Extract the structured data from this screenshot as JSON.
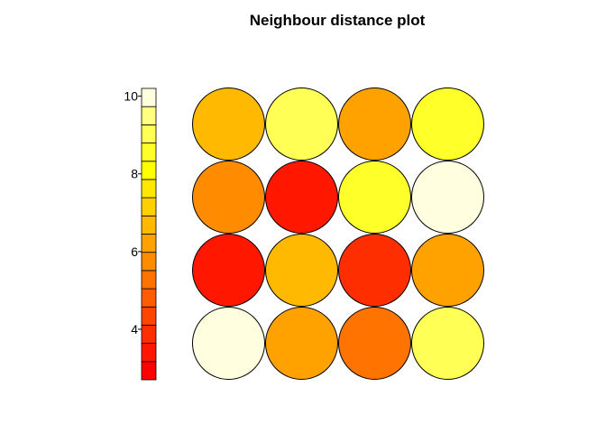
{
  "chart_data": {
    "type": "heatmap",
    "title": "Neighbour distance plot",
    "xlabel": "",
    "ylabel": "",
    "grid": {
      "rows": 4,
      "cols": 4,
      "values": [
        [
          6.6,
          9.0,
          6.3,
          8.5
        ],
        [
          5.7,
          3.3,
          8.4,
          10.0
        ],
        [
          3.6,
          6.6,
          3.9,
          6.2
        ],
        [
          10.0,
          6.2,
          5.1,
          9.1
        ]
      ]
    },
    "color_scale": {
      "min": 2.7,
      "max": 10.2,
      "ticks": [
        4,
        6,
        8,
        10
      ],
      "colors": [
        "#ff0000",
        "#ff1700",
        "#ff2e00",
        "#ff4500",
        "#ff5c00",
        "#ff7300",
        "#ff8b00",
        "#ffa200",
        "#ffb900",
        "#ffd000",
        "#ffe700",
        "#ffff00",
        "#ffff2a",
        "#ffff55",
        "#ffff80",
        "#ffffdf"
      ]
    }
  }
}
